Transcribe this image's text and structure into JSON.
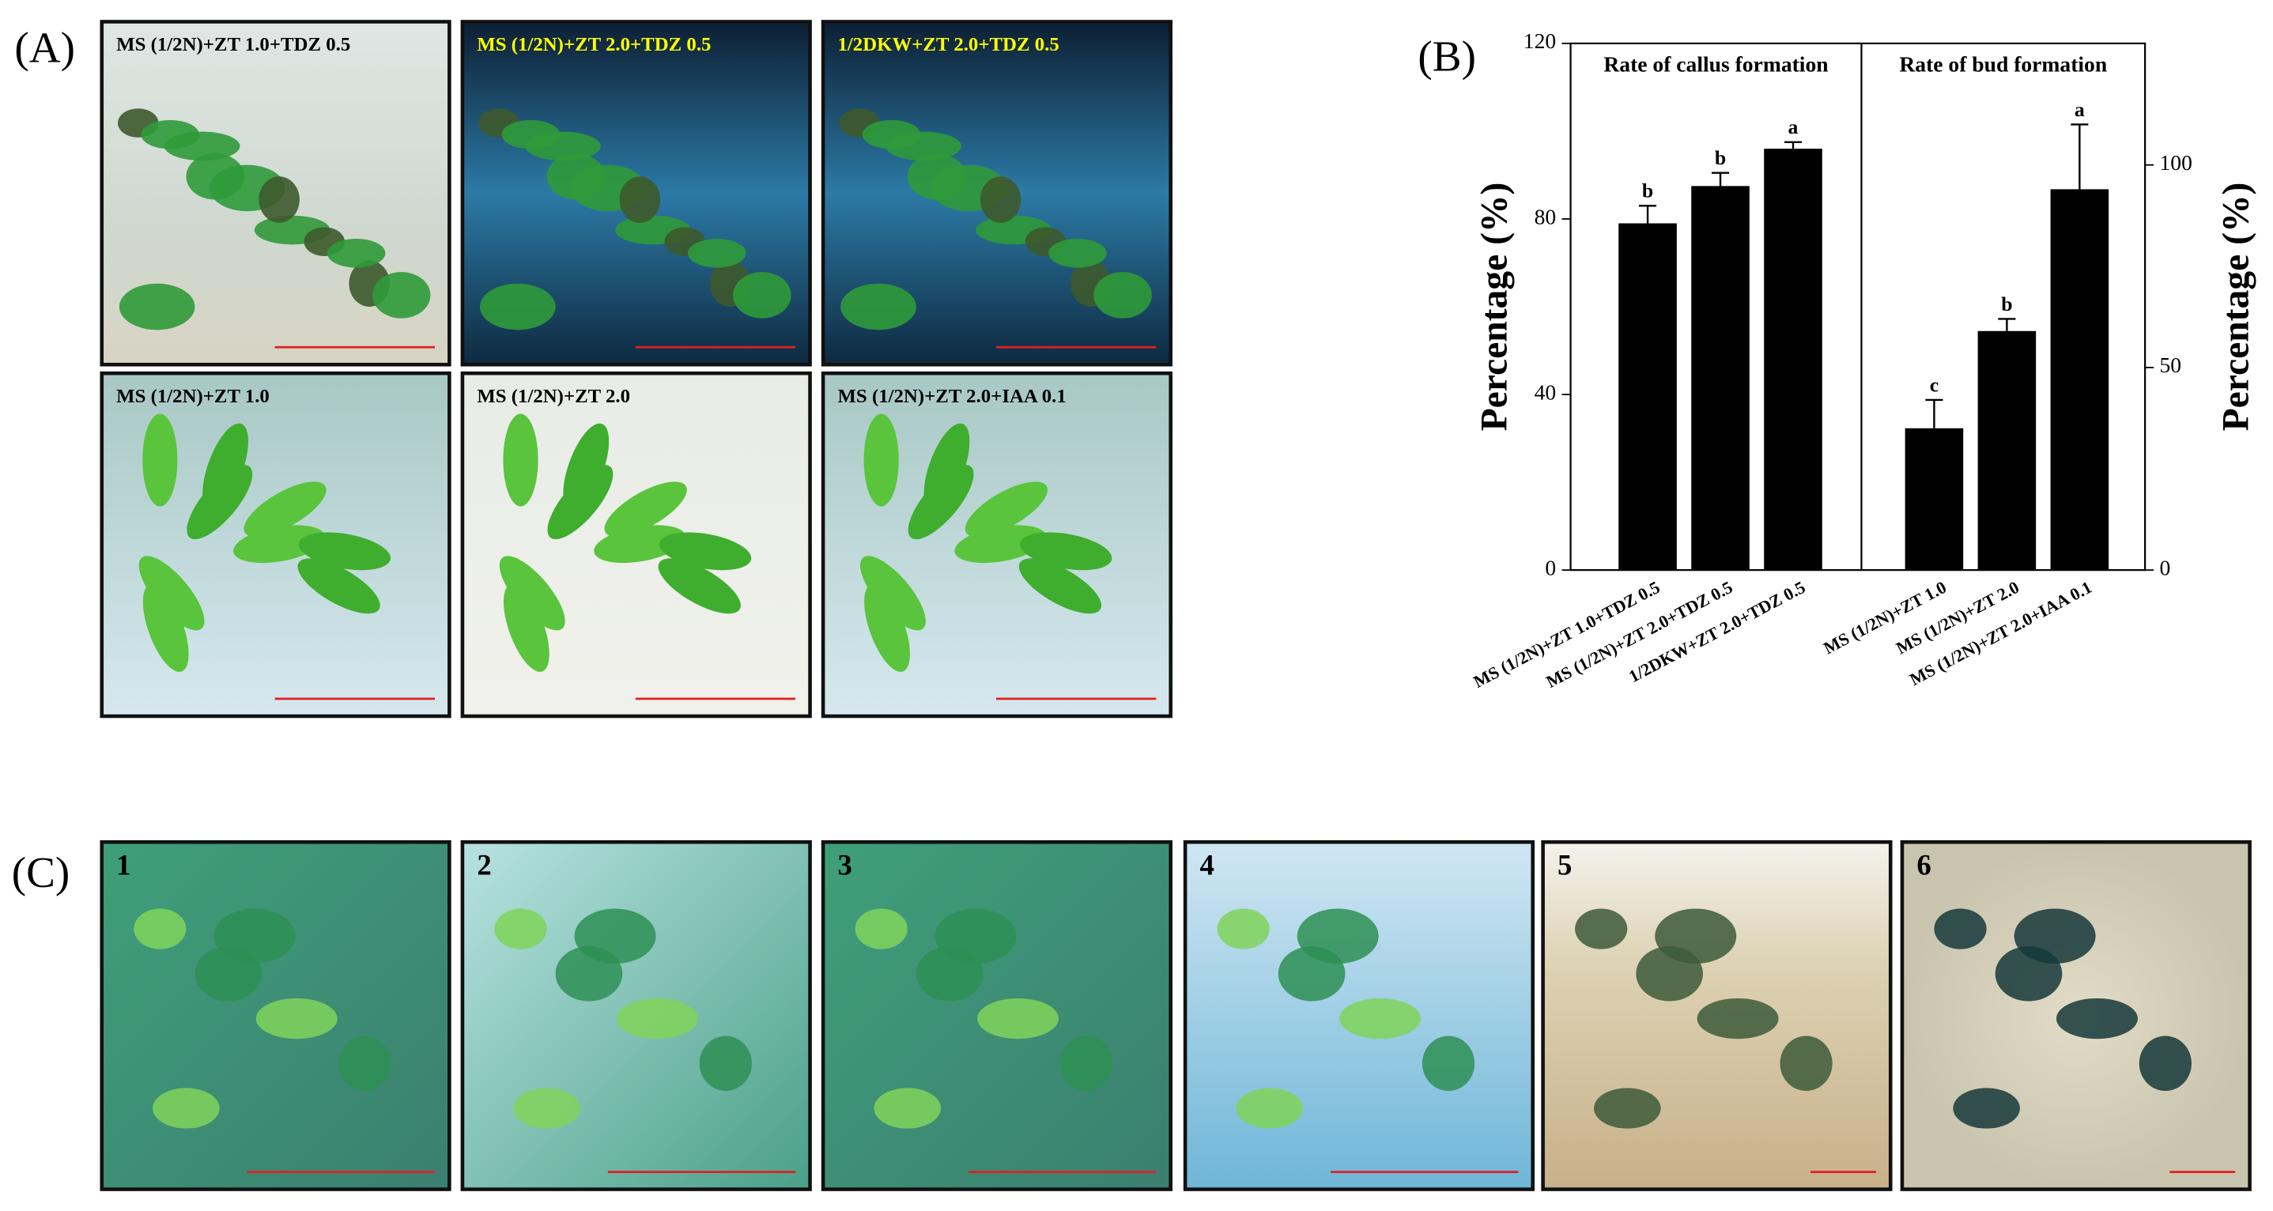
{
  "panel_labels": [
    "(A)",
    "(B)",
    "(C)"
  ],
  "panel_a": {
    "captions": [
      "MS (1/2N)+ZT 1.0+TDZ 0.5",
      "MS (1/2N)+ZT 2.0+TDZ 0.5",
      "1/2DKW+ZT 2.0+TDZ 0.5",
      "MS (1/2N)+ZT 1.0",
      "MS (1/2N)+ZT 2.0",
      "MS (1/2N)+ZT 2.0+IAA 0.1"
    ]
  },
  "panel_c": {
    "numbers": [
      "1",
      "2",
      "3",
      "4",
      "5",
      "6"
    ]
  },
  "chart_data": {
    "type": "bar",
    "categories": [
      "MS (1/2N)+ZT 1.0+TDZ 0.5",
      "MS (1/2N)+ZT 2.0+TDZ 0.5",
      "1/2DKW+ZT 2.0+TDZ 0.5",
      "MS (1/2N)+ZT 1.0",
      "MS (1/2N)+ZT 2.0",
      "MS (1/2N)+ZT 2.0+IAA 0.1"
    ],
    "series": [
      {
        "name": "Rate of callus formation",
        "color": "#000000",
        "values": [
          79,
          87.5,
          96,
          null,
          null,
          null
        ],
        "errors": [
          4,
          3,
          1.5,
          null,
          null,
          null
        ],
        "letters": [
          "b",
          "b",
          "a",
          null,
          null,
          null
        ]
      },
      {
        "name": "Rate of bud formation",
        "color": "#000000",
        "axis": "y2",
        "values": [
          null,
          null,
          null,
          35,
          59,
          94
        ],
        "errors": [
          null,
          null,
          null,
          7,
          3,
          16
        ],
        "letters": [
          null,
          null,
          null,
          "c",
          "b",
          "a"
        ]
      }
    ],
    "ylabel": "Percentage (%)",
    "y2label": "Percentage (%)",
    "ylim": [
      0,
      120
    ],
    "yticks": [
      0,
      40,
      80,
      120
    ],
    "y2lim": [
      0,
      130
    ],
    "y2ticks": [
      0,
      50,
      100
    ],
    "grid": false
  }
}
